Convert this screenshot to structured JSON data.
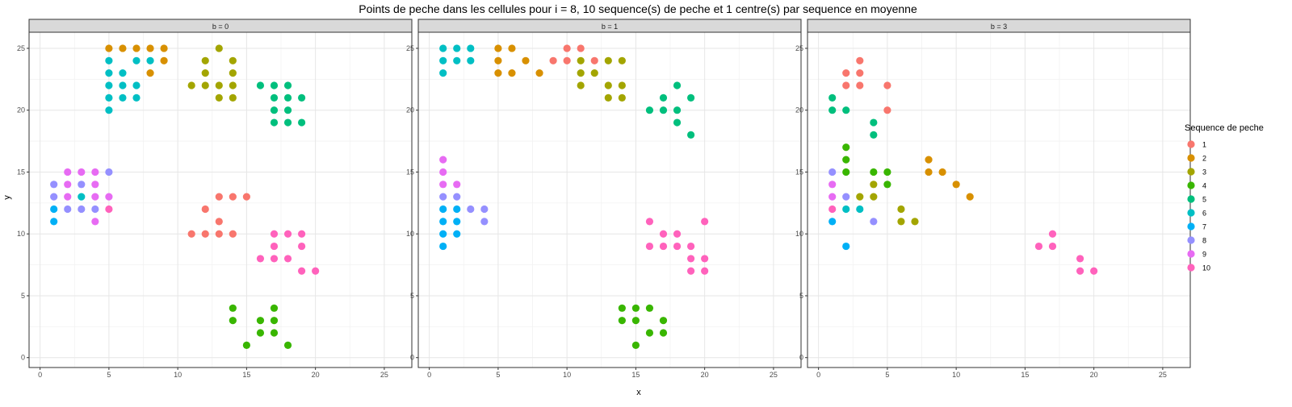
{
  "title": "Points de peche dans les cellules pour i = 8, 10 sequence(s) de peche et 1 centre(s) par sequence en moyenne",
  "xlabel": "x",
  "ylabel": "y",
  "legend": {
    "title": "Sequence de peche",
    "placement": "right",
    "items": [
      {
        "label": "1",
        "color": "#F8766D"
      },
      {
        "label": "2",
        "color": "#D89000"
      },
      {
        "label": "3",
        "color": "#A3A500"
      },
      {
        "label": "4",
        "color": "#39B600"
      },
      {
        "label": "5",
        "color": "#00BF7D"
      },
      {
        "label": "6",
        "color": "#00BFC4"
      },
      {
        "label": "7",
        "color": "#00B0F6"
      },
      {
        "label": "8",
        "color": "#9590FF"
      },
      {
        "label": "9",
        "color": "#E76BF3"
      },
      {
        "label": "10",
        "color": "#FF62BC"
      }
    ]
  },
  "chart_data": {
    "type": "scatter",
    "xlim": [
      0,
      26
    ],
    "ylim": [
      0,
      26
    ],
    "x_ticks": [
      0,
      5,
      10,
      15,
      20,
      25
    ],
    "y_ticks": [
      0,
      5,
      10,
      15,
      20,
      25
    ],
    "grid": true,
    "panels": [
      {
        "strip": "b = 0",
        "series": [
          {
            "name": "1",
            "points": [
              [
                13,
                13
              ],
              [
                14,
                13
              ],
              [
                15,
                13
              ],
              [
                12,
                12
              ],
              [
                13,
                11
              ],
              [
                11,
                10
              ],
              [
                12,
                10
              ],
              [
                13,
                10
              ],
              [
                14,
                10
              ]
            ]
          },
          {
            "name": "2",
            "points": [
              [
                5,
                25
              ],
              [
                6,
                25
              ],
              [
                7,
                25
              ],
              [
                8,
                25
              ],
              [
                9,
                25
              ],
              [
                9,
                24
              ],
              [
                8,
                23
              ]
            ]
          },
          {
            "name": "3",
            "points": [
              [
                13,
                25
              ],
              [
                12,
                24
              ],
              [
                14,
                24
              ],
              [
                12,
                23
              ],
              [
                14,
                23
              ],
              [
                11,
                22
              ],
              [
                12,
                22
              ],
              [
                13,
                22
              ],
              [
                14,
                22
              ],
              [
                13,
                21
              ],
              [
                14,
                21
              ]
            ]
          },
          {
            "name": "4",
            "points": [
              [
                14,
                4
              ],
              [
                17,
                4
              ],
              [
                14,
                3
              ],
              [
                16,
                3
              ],
              [
                17,
                3
              ],
              [
                16,
                2
              ],
              [
                17,
                2
              ],
              [
                15,
                1
              ],
              [
                18,
                1
              ]
            ]
          },
          {
            "name": "5",
            "points": [
              [
                16,
                22
              ],
              [
                17,
                22
              ],
              [
                18,
                22
              ],
              [
                17,
                21
              ],
              [
                18,
                21
              ],
              [
                19,
                21
              ],
              [
                17,
                20
              ],
              [
                18,
                20
              ],
              [
                17,
                19
              ],
              [
                18,
                19
              ],
              [
                19,
                19
              ]
            ]
          },
          {
            "name": "6",
            "points": [
              [
                5,
                24
              ],
              [
                7,
                24
              ],
              [
                8,
                24
              ],
              [
                5,
                23
              ],
              [
                6,
                23
              ],
              [
                5,
                22
              ],
              [
                6,
                22
              ],
              [
                7,
                22
              ],
              [
                5,
                21
              ],
              [
                6,
                21
              ],
              [
                7,
                21
              ],
              [
                5,
                20
              ],
              [
                3,
                13
              ]
            ]
          },
          {
            "name": "7",
            "points": [
              [
                1,
                12
              ],
              [
                1,
                11
              ]
            ]
          },
          {
            "name": "8",
            "points": [
              [
                1,
                14
              ],
              [
                1,
                13
              ],
              [
                3,
                14
              ],
              [
                5,
                15
              ],
              [
                2,
                12
              ],
              [
                3,
                12
              ],
              [
                4,
                12
              ]
            ]
          },
          {
            "name": "9",
            "points": [
              [
                2,
                15
              ],
              [
                3,
                15
              ],
              [
                4,
                15
              ],
              [
                2,
                14
              ],
              [
                4,
                14
              ],
              [
                2,
                13
              ],
              [
                4,
                13
              ],
              [
                5,
                13
              ],
              [
                4,
                11
              ]
            ]
          },
          {
            "name": "10",
            "points": [
              [
                5,
                12
              ],
              [
                17,
                10
              ],
              [
                18,
                10
              ],
              [
                19,
                10
              ],
              [
                17,
                9
              ],
              [
                19,
                9
              ],
              [
                16,
                8
              ],
              [
                17,
                8
              ],
              [
                18,
                8
              ],
              [
                19,
                7
              ],
              [
                20,
                7
              ]
            ]
          }
        ]
      },
      {
        "strip": "b = 1",
        "series": [
          {
            "name": "1",
            "points": [
              [
                10,
                25
              ],
              [
                11,
                25
              ],
              [
                9,
                24
              ],
              [
                10,
                24
              ],
              [
                12,
                24
              ]
            ]
          },
          {
            "name": "2",
            "points": [
              [
                5,
                25
              ],
              [
                6,
                25
              ],
              [
                5,
                24
              ],
              [
                7,
                24
              ],
              [
                5,
                23
              ],
              [
                6,
                23
              ],
              [
                8,
                23
              ]
            ]
          },
          {
            "name": "3",
            "points": [
              [
                11,
                24
              ],
              [
                13,
                24
              ],
              [
                14,
                24
              ],
              [
                11,
                23
              ],
              [
                12,
                23
              ],
              [
                11,
                22
              ],
              [
                13,
                22
              ],
              [
                14,
                22
              ],
              [
                13,
                21
              ],
              [
                14,
                21
              ]
            ]
          },
          {
            "name": "4",
            "points": [
              [
                14,
                4
              ],
              [
                15,
                4
              ],
              [
                16,
                4
              ],
              [
                14,
                3
              ],
              [
                15,
                3
              ],
              [
                17,
                3
              ],
              [
                16,
                2
              ],
              [
                17,
                2
              ],
              [
                15,
                1
              ]
            ]
          },
          {
            "name": "5",
            "points": [
              [
                18,
                22
              ],
              [
                17,
                21
              ],
              [
                19,
                21
              ],
              [
                16,
                20
              ],
              [
                17,
                20
              ],
              [
                18,
                20
              ],
              [
                18,
                19
              ],
              [
                19,
                18
              ]
            ]
          },
          {
            "name": "6",
            "points": [
              [
                1,
                25
              ],
              [
                2,
                25
              ],
              [
                3,
                25
              ],
              [
                1,
                24
              ],
              [
                2,
                24
              ],
              [
                3,
                24
              ],
              [
                1,
                23
              ]
            ]
          },
          {
            "name": "7",
            "points": [
              [
                1,
                12
              ],
              [
                2,
                12
              ],
              [
                1,
                11
              ],
              [
                2,
                11
              ],
              [
                1,
                10
              ],
              [
                2,
                10
              ],
              [
                1,
                9
              ]
            ]
          },
          {
            "name": "8",
            "points": [
              [
                1,
                13
              ],
              [
                2,
                13
              ],
              [
                3,
                12
              ],
              [
                4,
                12
              ],
              [
                4,
                11
              ]
            ]
          },
          {
            "name": "9",
            "points": [
              [
                1,
                16
              ],
              [
                1,
                15
              ],
              [
                1,
                14
              ],
              [
                2,
                14
              ]
            ]
          },
          {
            "name": "10",
            "points": [
              [
                16,
                11
              ],
              [
                20,
                11
              ],
              [
                17,
                10
              ],
              [
                18,
                10
              ],
              [
                16,
                9
              ],
              [
                17,
                9
              ],
              [
                18,
                9
              ],
              [
                19,
                9
              ],
              [
                19,
                8
              ],
              [
                20,
                8
              ],
              [
                19,
                7
              ],
              [
                20,
                7
              ]
            ]
          }
        ]
      },
      {
        "strip": "b = 3",
        "series": [
          {
            "name": "1",
            "points": [
              [
                3,
                24
              ],
              [
                2,
                23
              ],
              [
                3,
                23
              ],
              [
                2,
                22
              ],
              [
                3,
                22
              ],
              [
                5,
                22
              ],
              [
                5,
                20
              ]
            ]
          },
          {
            "name": "2",
            "points": [
              [
                8,
                16
              ],
              [
                8,
                15
              ],
              [
                9,
                15
              ],
              [
                10,
                14
              ],
              [
                11,
                13
              ]
            ]
          },
          {
            "name": "3",
            "points": [
              [
                4,
                14
              ],
              [
                3,
                13
              ],
              [
                4,
                13
              ],
              [
                6,
                12
              ],
              [
                6,
                11
              ],
              [
                7,
                11
              ]
            ]
          },
          {
            "name": "4",
            "points": [
              [
                2,
                17
              ],
              [
                2,
                16
              ],
              [
                2,
                15
              ],
              [
                4,
                15
              ],
              [
                5,
                15
              ],
              [
                5,
                14
              ]
            ]
          },
          {
            "name": "5",
            "points": [
              [
                1,
                21
              ],
              [
                1,
                20
              ],
              [
                2,
                20
              ],
              [
                4,
                19
              ],
              [
                4,
                18
              ]
            ]
          },
          {
            "name": "6",
            "points": [
              [
                2,
                12
              ],
              [
                3,
                12
              ]
            ]
          },
          {
            "name": "7",
            "points": [
              [
                1,
                11
              ],
              [
                2,
                9
              ]
            ]
          },
          {
            "name": "8",
            "points": [
              [
                1,
                15
              ],
              [
                2,
                13
              ],
              [
                4,
                11
              ]
            ]
          },
          {
            "name": "9",
            "points": [
              [
                1,
                14
              ],
              [
                1,
                13
              ]
            ]
          },
          {
            "name": "10",
            "points": [
              [
                1,
                12
              ],
              [
                17,
                10
              ],
              [
                16,
                9
              ],
              [
                17,
                9
              ],
              [
                19,
                8
              ],
              [
                19,
                7
              ],
              [
                20,
                7
              ]
            ]
          }
        ]
      }
    ]
  }
}
